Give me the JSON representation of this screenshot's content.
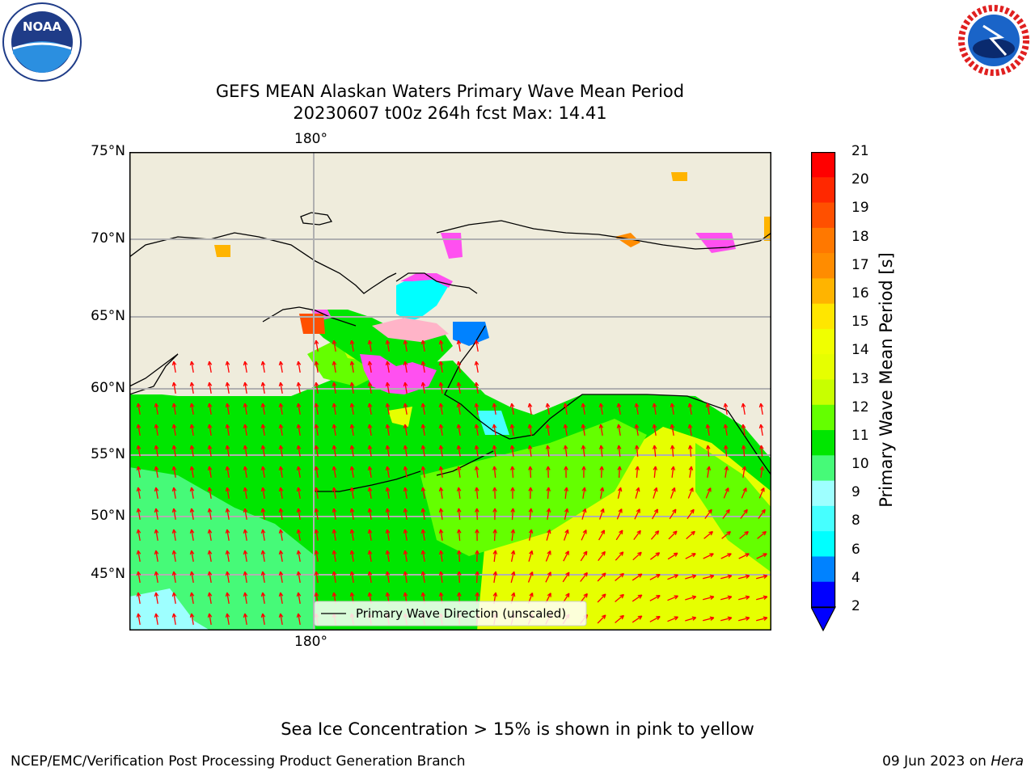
{
  "header": {
    "title_line1": "GEFS MEAN Alaskan Waters Primary Wave Mean Period",
    "title_line2": "20230607 t00z 264h fcst   Max: 14.41"
  },
  "logos": {
    "left": {
      "icon": "noaa-logo",
      "text": "NOAA"
    },
    "right": {
      "icon": "nws-logo",
      "text": "NATIONAL WEATHER SERVICE"
    }
  },
  "map": {
    "top_lon_label": "180°",
    "bottom_lon_label": "180°",
    "lat_labels": [
      "75°N",
      "70°N",
      "65°N",
      "60°N",
      "55°N",
      "50°N",
      "45°N"
    ],
    "legend_label": "Primary Wave Direction (unscaled)",
    "colors": {
      "land": "#efecdc",
      "arrow": "#ff0000",
      "gridline": "#b0b0b0"
    }
  },
  "colorbar": {
    "label": "Primary Wave Mean Period [s]",
    "ticks": [
      "21",
      "20",
      "19",
      "18",
      "17",
      "16",
      "15",
      "14",
      "13",
      "12",
      "11",
      "10",
      "9",
      "8",
      "6",
      "4",
      "2"
    ],
    "colors_top_to_bottom": [
      "#ff0000",
      "#ff2800",
      "#ff5000",
      "#ff7800",
      "#ff8c00",
      "#ffb400",
      "#ffe600",
      "#f0ff00",
      "#e6ff00",
      "#c8ff00",
      "#64ff00",
      "#00e600",
      "#46fa78",
      "#9effff",
      "#46ffff",
      "#00ffff",
      "#0082ff",
      "#0000ff"
    ]
  },
  "footer": {
    "note": "Sea Ice Concentration > 15% is shown in pink to yellow",
    "credit": "NCEP/EMC/Verification Post Processing Product Generation Branch",
    "date": "09 Jun 2023 on",
    "machine": "Hera"
  }
}
